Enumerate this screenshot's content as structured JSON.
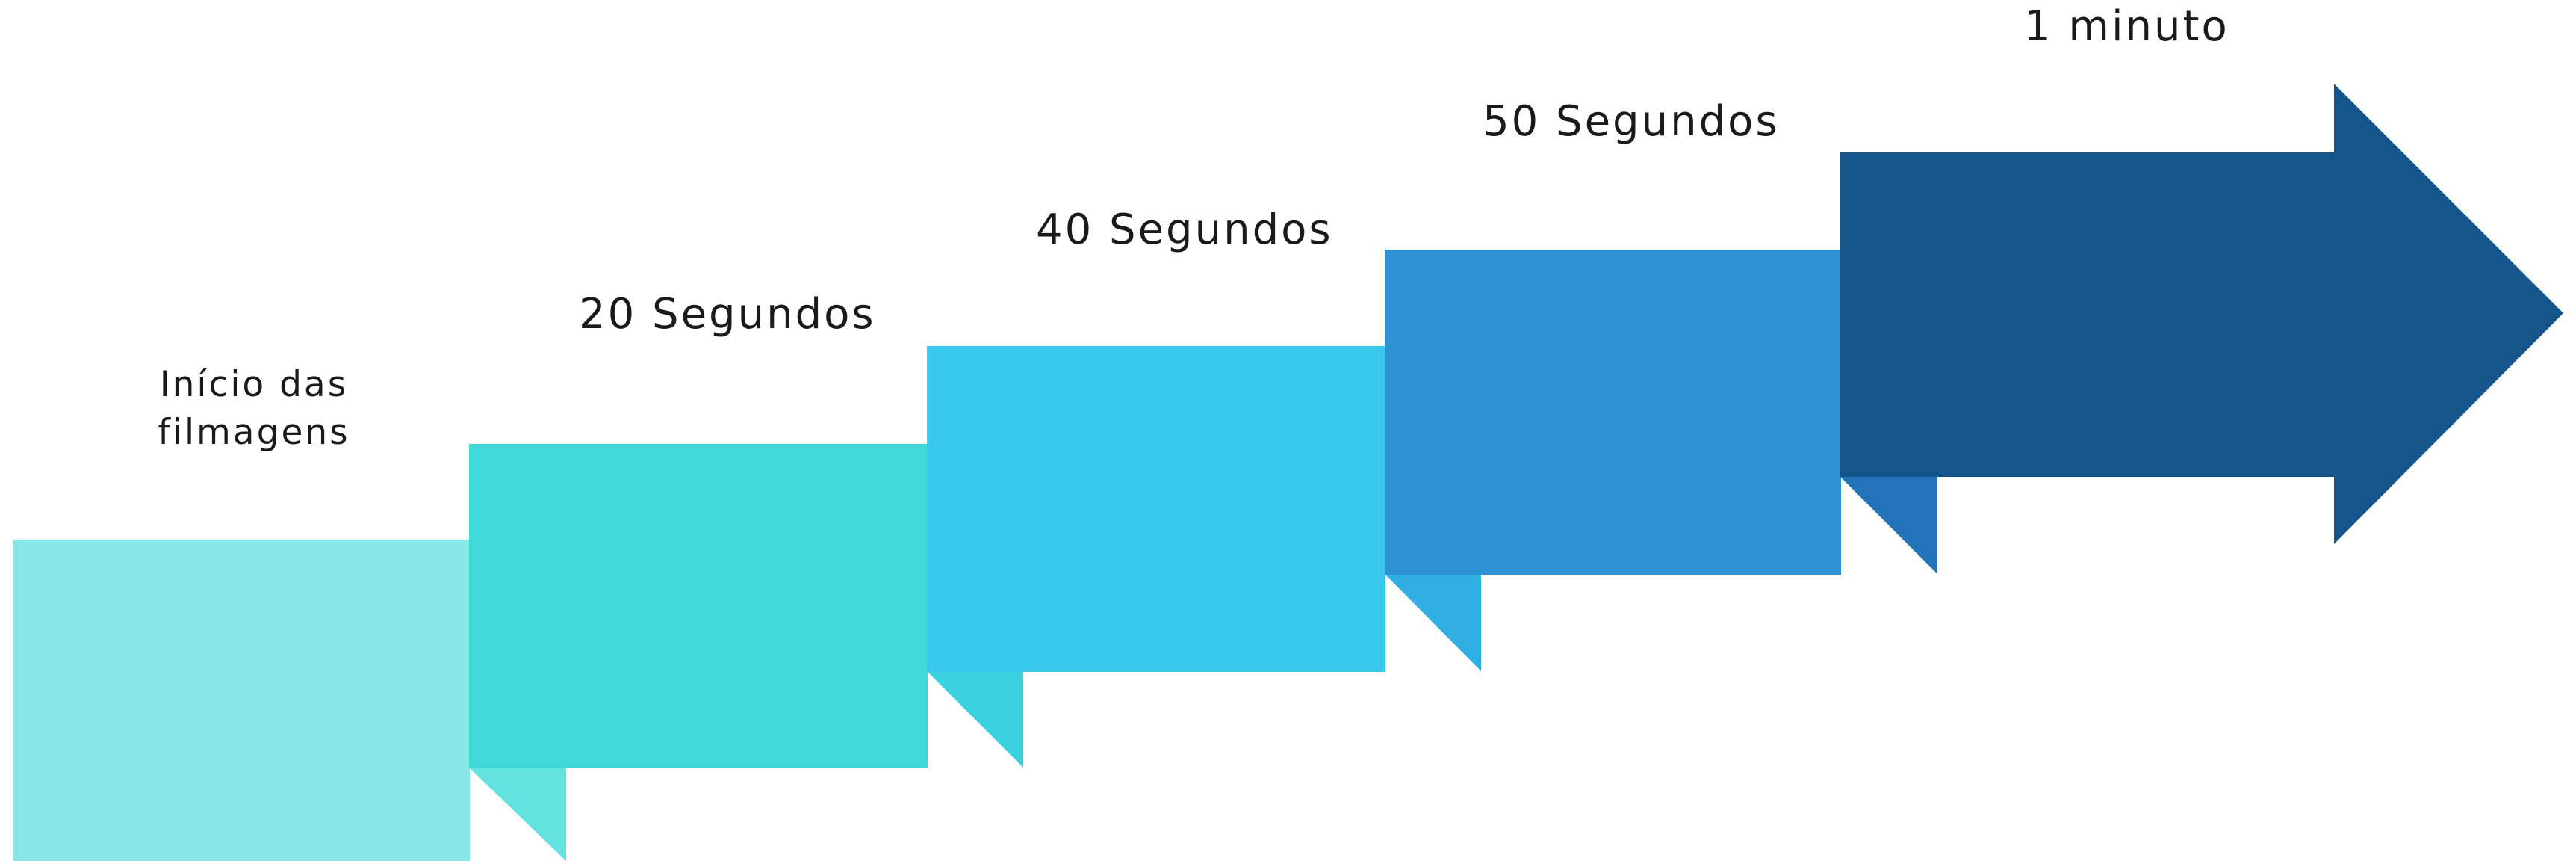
{
  "diagram": {
    "steps": [
      {
        "label": "Início das filmagens",
        "color": "#89E8E7",
        "fold_color": "#63E2DF"
      },
      {
        "label": "20 Segundos",
        "color": "#3FD9D9",
        "fold_color": "#3BD2E0"
      },
      {
        "label": "40 Segundos",
        "color": "#3AC7EE",
        "fold_color": "#31AEE2"
      },
      {
        "label": "50 Segundos",
        "color": "#2E91D5",
        "fold_color": "#2273BA"
      },
      {
        "label": "1 minuto",
        "color": "#16558B"
      }
    ]
  }
}
